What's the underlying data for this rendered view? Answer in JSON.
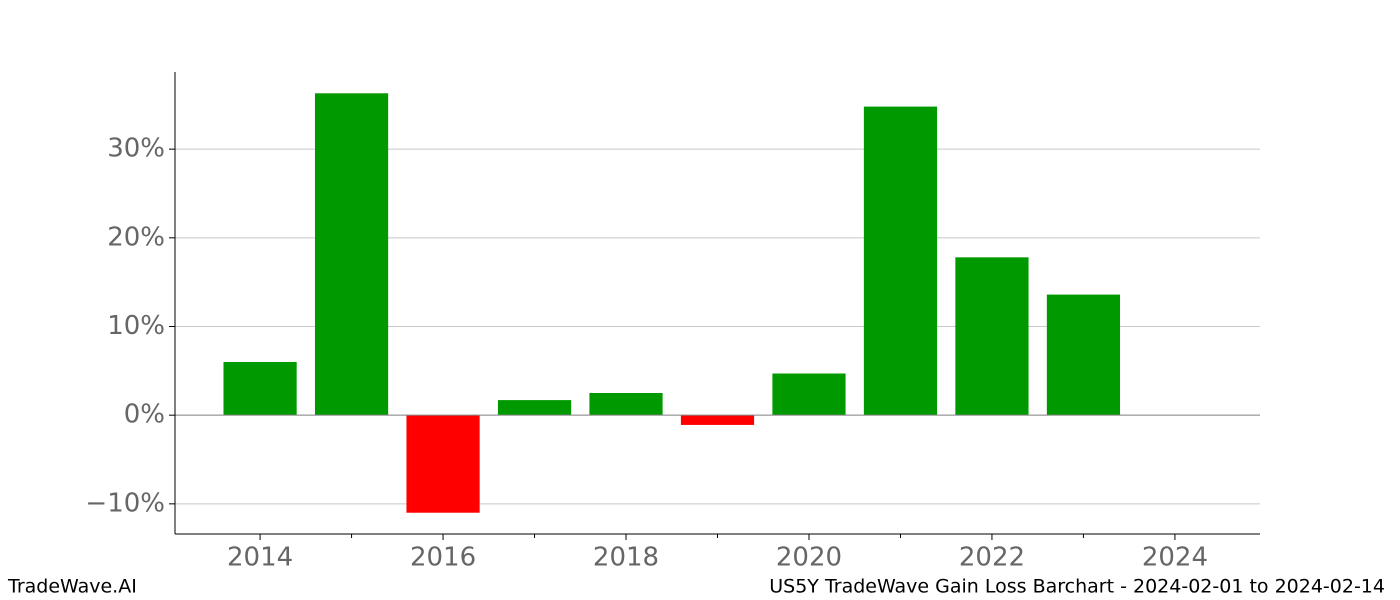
{
  "chart_data": {
    "type": "bar",
    "title": "US5Y TradeWave Gain Loss Barchart - 2024-02-01 to 2024-02-14",
    "watermark": "TradeWave.AI",
    "x": [
      2014,
      2015,
      2016,
      2017,
      2018,
      2019,
      2020,
      2021,
      2022,
      2023
    ],
    "values": [
      6.0,
      36.3,
      -11.0,
      1.7,
      2.5,
      -1.1,
      4.7,
      34.8,
      17.8,
      13.6
    ],
    "positive_color": "#009900",
    "negative_color": "#ff0000",
    "xlim": [
      2013.07,
      2024.93
    ],
    "xticks": [
      2014,
      2016,
      2018,
      2020,
      2022,
      2024
    ],
    "xminorticks": [
      2015,
      2017,
      2019,
      2021,
      2023
    ],
    "ylim": [
      -13.4,
      38.7
    ],
    "yticks": [
      {
        "value": -10,
        "label": "−10%"
      },
      {
        "value": 0,
        "label": "0%"
      },
      {
        "value": 10,
        "label": "10%"
      },
      {
        "value": 20,
        "label": "20%"
      },
      {
        "value": 30,
        "label": "30%"
      }
    ],
    "grid": true
  }
}
